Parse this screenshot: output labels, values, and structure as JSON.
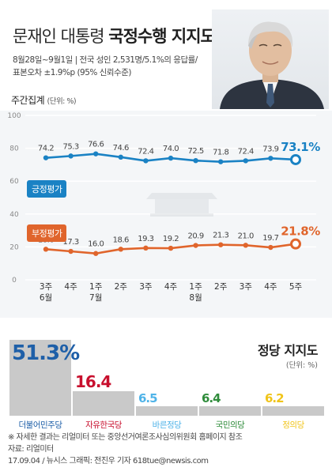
{
  "header": {
    "title_plain": "문재인 대통령 ",
    "title_bold": "국정수행 지지도",
    "note_line1": "8월28일~9월1일 | 전국 성인 2,531명/5.1%의 응답률/",
    "note_line2": "표본오차 ±1.9%p (95% 신뢰수준)",
    "weekly_label": "주간집계",
    "weekly_unit": "(단위: %)"
  },
  "badges": {
    "approve": "긍정평가",
    "disapprove": "부정평가"
  },
  "colors": {
    "approve": "#1a82c4",
    "disapprove": "#e0652c",
    "grid": "#ffffff",
    "bar": "#c9c9c9"
  },
  "chart_data": [
    {
      "type": "line",
      "title": "",
      "x": [
        "3주 6월",
        "4주",
        "1주 7월",
        "2주",
        "3주",
        "4주",
        "1주 8월",
        "2주",
        "3주",
        "4주",
        "5주"
      ],
      "x_week": [
        "3주",
        "4주",
        "1주",
        "2주",
        "3주",
        "4주",
        "1주",
        "2주",
        "3주",
        "4주",
        "5주"
      ],
      "x_month": [
        "6월",
        "",
        "7월",
        "",
        "",
        "",
        "8월",
        "",
        "",
        "",
        ""
      ],
      "series": [
        {
          "name": "긍정평가",
          "values": [
            74.2,
            75.3,
            76.6,
            74.6,
            72.4,
            74.0,
            72.5,
            71.8,
            72.4,
            73.9,
            73.1
          ],
          "labels": [
            "74.2",
            "75.3",
            "76.6",
            "74.6",
            "72.4",
            "74.0",
            "72.5",
            "71.8",
            "72.4",
            "73.9",
            "73.1%"
          ]
        },
        {
          "name": "부정평가",
          "values": [
            18.6,
            17.3,
            16.0,
            18.6,
            19.3,
            19.2,
            20.9,
            21.3,
            21.0,
            19.7,
            21.8
          ],
          "labels": [
            "18.6",
            "17.3",
            "16.0",
            "18.6",
            "19.3",
            "19.2",
            "20.9",
            "21.3",
            "21.0",
            "19.7",
            "21.8%"
          ]
        }
      ],
      "y_ticks": [
        "0",
        "20",
        "40",
        "60",
        "80",
        "100"
      ],
      "ylim": [
        0,
        100
      ],
      "grid": true
    },
    {
      "type": "bar",
      "title": "정당 지지도",
      "unit": "(단위: %)",
      "categories": [
        "더불어민주당",
        "자유한국당",
        "바른정당",
        "국민의당",
        "정의당"
      ],
      "values": [
        51.3,
        16.4,
        6.5,
        6.4,
        6.2
      ],
      "value_labels": [
        "51.3%",
        "16.4",
        "6.5",
        "6.4",
        "6.2"
      ],
      "colors": [
        "#1e5fa8",
        "#c8102e",
        "#4fb3e8",
        "#2f8c3b",
        "#f0c419"
      ]
    }
  ],
  "footnote": {
    "line1": "※ 자세한 결과는 리얼미터 또는 중앙선거여론조사심의위원회 홈페이지 참조",
    "line2": "자료: 리얼미터",
    "line3": "17.09.04 / 뉴시스 그래픽: 전진우 기자 618tue@newsis.com"
  }
}
